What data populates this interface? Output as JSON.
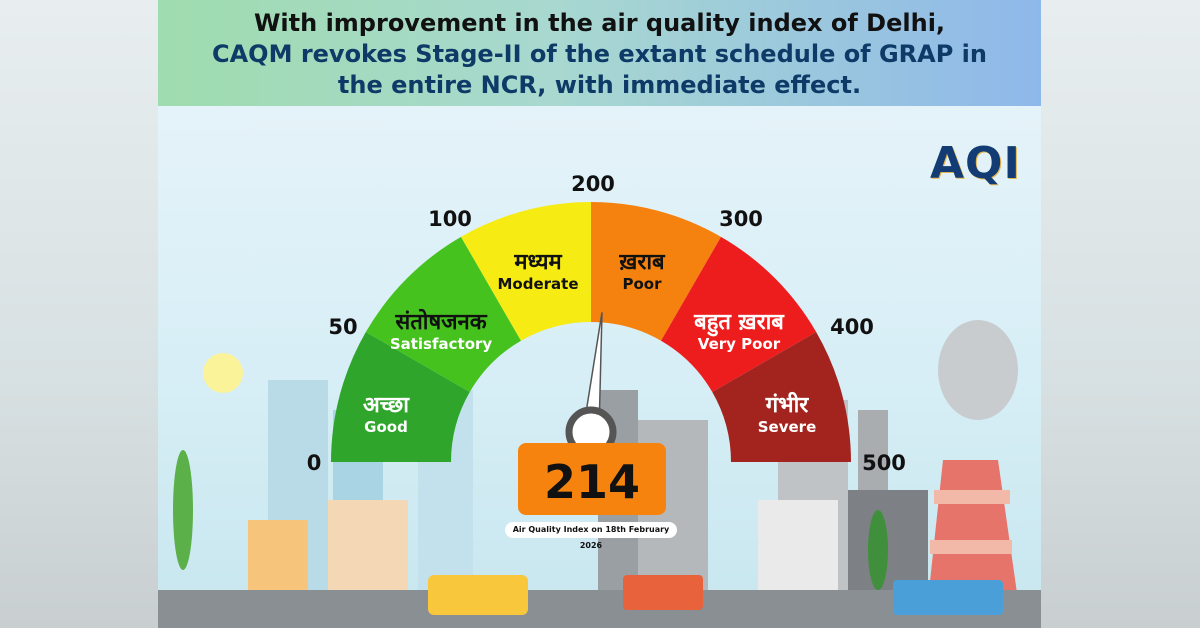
{
  "header": {
    "line1": "With improvement in the air quality index of Delhi,",
    "line2": "CAQM revokes Stage-II of the extant schedule of GRAP in",
    "line3": "the entire NCR, with immediate effect."
  },
  "logo": "AQI",
  "gauge": {
    "value": "214",
    "value_number": 214,
    "caption": "Air Quality Index on 18th February 2026",
    "ticks": [
      "0",
      "50",
      "100",
      "200",
      "300",
      "400",
      "500"
    ],
    "segments": [
      {
        "hindi": "अच्छा",
        "english": "Good",
        "color": "#2fa52c"
      },
      {
        "hindi": "संतोषजनक",
        "english": "Satisfactory",
        "color": "#46c21f"
      },
      {
        "hindi": "मध्यम",
        "english": "Moderate",
        "color": "#f6ec14"
      },
      {
        "hindi": "ख़राब",
        "english": "Poor",
        "color": "#f5820f"
      },
      {
        "hindi": "बहुत ख़राब",
        "english": "Very Poor",
        "color": "#ee1d1d"
      },
      {
        "hindi": "गंभीर",
        "english": "Severe",
        "color": "#a3241f"
      }
    ]
  }
}
